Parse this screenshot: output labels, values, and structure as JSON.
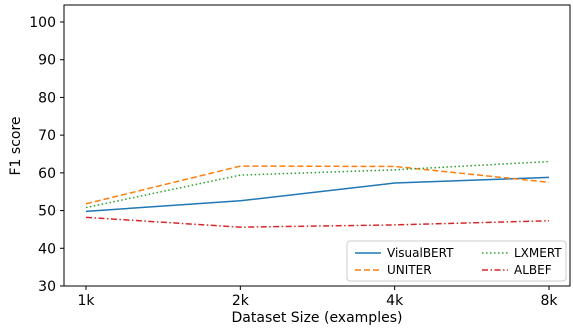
{
  "chart_data": {
    "type": "line",
    "title": "",
    "xlabel": "Dataset Size (examples)",
    "ylabel": "F1 score",
    "categories": [
      "1k",
      "2k",
      "4k",
      "8k"
    ],
    "ylim": [
      30,
      105
    ],
    "yticks": [
      30,
      40,
      50,
      60,
      70,
      80,
      90,
      100
    ],
    "grid": false,
    "legend_position": "lower-right",
    "series": [
      {
        "name": "VisualBERT",
        "values": [
          49.8,
          52.6,
          57.3,
          58.8
        ],
        "color": "#1f77b4",
        "dash": "solid"
      },
      {
        "name": "UNITER",
        "values": [
          51.8,
          61.8,
          61.7,
          57.5
        ],
        "color": "#ff7f0e",
        "dash": "dashed"
      },
      {
        "name": "LXMERT",
        "values": [
          50.8,
          59.4,
          60.8,
          63.0
        ],
        "color": "#2ca02c",
        "dash": "dotted"
      },
      {
        "name": "ALBEF",
        "values": [
          48.2,
          45.6,
          46.2,
          47.3
        ],
        "color": "#d62728",
        "dash": "dashdot"
      }
    ]
  }
}
